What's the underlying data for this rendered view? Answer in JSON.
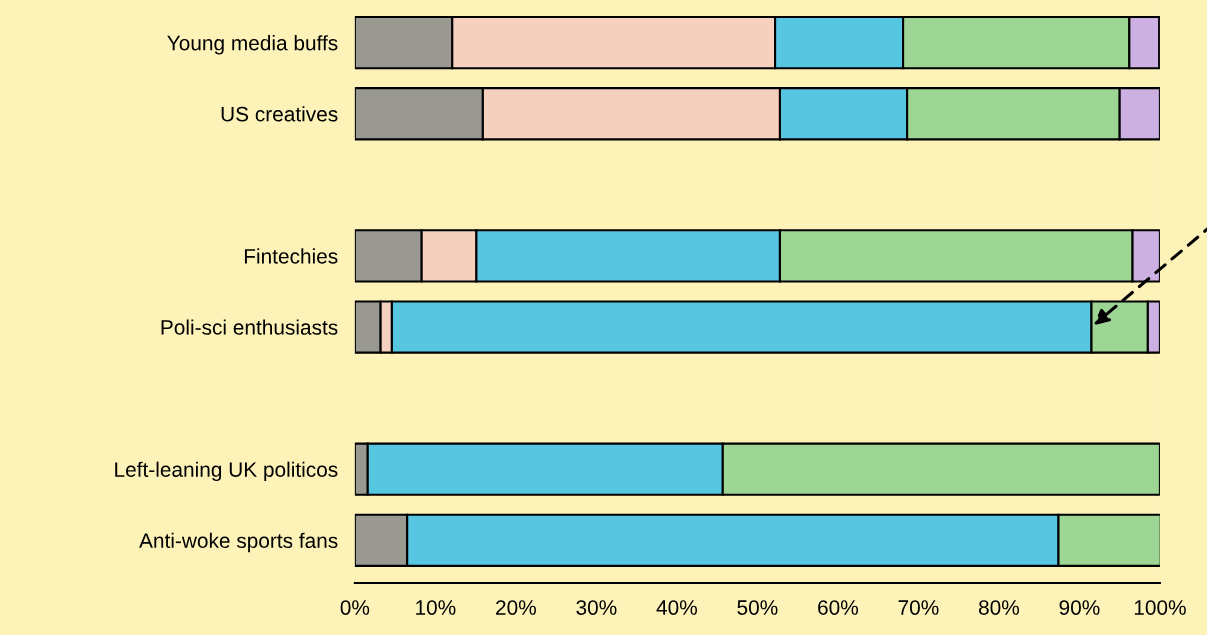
{
  "chart_data": {
    "type": "bar",
    "orientation": "horizontal",
    "stacked": true,
    "categories": [
      "Young media buffs",
      "US creatives",
      null,
      "Fintechies",
      "Poli-sci enthusiasts",
      null,
      "Left-leaning UK politicos",
      "Anti-woke sports fans"
    ],
    "series": [
      {
        "color": "#999891",
        "values": [
          12.1,
          15.9,
          null,
          8.3,
          3.2,
          null,
          1.6,
          6.5
        ]
      },
      {
        "color": "#f6d0bf",
        "values": [
          40.1,
          36.9,
          null,
          6.8,
          1.4,
          null,
          null,
          null
        ]
      },
      {
        "color": "#57c6e1",
        "values": [
          15.9,
          15.8,
          null,
          37.7,
          86.9,
          null,
          44.1,
          80.9
        ]
      },
      {
        "color": "#9dd595",
        "values": [
          28.1,
          26.4,
          null,
          43.8,
          7.0,
          null,
          54.3,
          12.7
        ]
      },
      {
        "color": "#cdb0e2",
        "values": [
          3.7,
          5.0,
          null,
          3.4,
          1.5,
          null,
          null,
          null
        ]
      }
    ],
    "xlim": [
      0,
      100
    ],
    "xticks": [
      {
        "value": 0,
        "label": "0%"
      },
      {
        "value": 10,
        "label": "10%"
      },
      {
        "value": 20,
        "label": "20%"
      },
      {
        "value": 30,
        "label": "30%"
      },
      {
        "value": 40,
        "label": "40%"
      },
      {
        "value": 50,
        "label": "50%"
      },
      {
        "value": 60,
        "label": "60%"
      },
      {
        "value": 70,
        "label": "70%"
      },
      {
        "value": 80,
        "label": "80%"
      },
      {
        "value": 90,
        "label": "90%"
      },
      {
        "value": 100,
        "label": "100%"
      }
    ],
    "grid": false,
    "legend": false
  }
}
